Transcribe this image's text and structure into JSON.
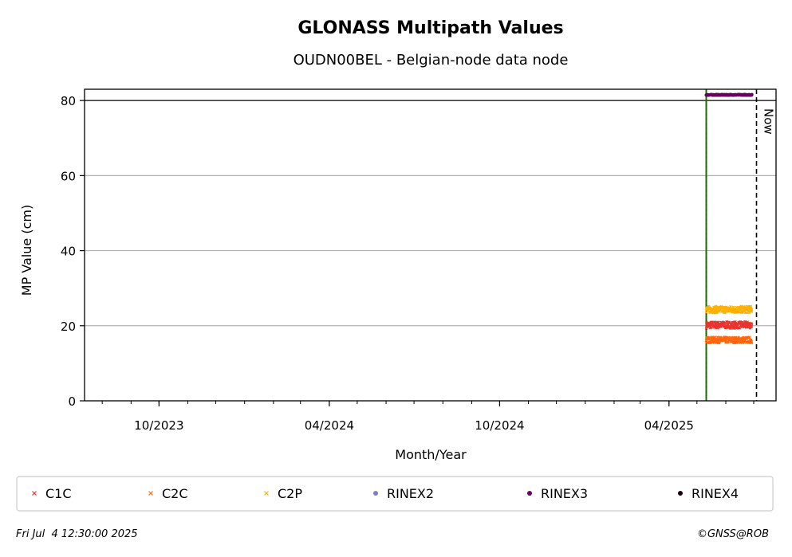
{
  "chart_data": {
    "type": "scatter",
    "title": "GLONASS Multipath Values",
    "subtitle": "OUDN00BEL - Belgian-node data node",
    "xlabel": "Month/Year",
    "ylabel": "MP Value (cm)",
    "xlim": [
      "2023-07-13",
      "2025-07-25"
    ],
    "ylim": [
      0,
      83
    ],
    "x_ticks": [
      {
        "date": "2023-10-01",
        "label": "10/2023"
      },
      {
        "date": "2024-04-01",
        "label": "04/2024"
      },
      {
        "date": "2024-10-01",
        "label": "10/2024"
      },
      {
        "date": "2025-04-01",
        "label": "04/2025"
      }
    ],
    "y_ticks": [
      0,
      20,
      40,
      60,
      80
    ],
    "grid": "y",
    "reference_line_y": 80,
    "vertical_markers": [
      {
        "date": "2025-05-11",
        "style": "green-red dashed",
        "label": ""
      },
      {
        "date": "2025-07-04",
        "style": "black dashed",
        "label": "Now"
      }
    ],
    "series": [
      {
        "name": "C1C",
        "color": "#e8352e",
        "marker": "x",
        "start": "2025-05-11",
        "end": "2025-06-29",
        "mean": 20.2,
        "jitter": 0.9
      },
      {
        "name": "C2C",
        "color": "#ff6610",
        "marker": "x",
        "start": "2025-05-11",
        "end": "2025-06-29",
        "mean": 16.2,
        "jitter": 0.8
      },
      {
        "name": "C2P",
        "color": "#ffb000",
        "marker": "x",
        "start": "2025-05-11",
        "end": "2025-06-29",
        "mean": 24.3,
        "jitter": 0.9
      },
      {
        "name": "RINEX2",
        "color": "#7f7fc0",
        "marker": "o",
        "start": "",
        "end": "",
        "mean": null,
        "jitter": 0
      },
      {
        "name": "RINEX3",
        "color": "#6a0060",
        "marker": "o",
        "start": "2025-05-11",
        "end": "2025-06-29",
        "mean": 81.5,
        "jitter": 0.1
      },
      {
        "name": "RINEX4",
        "color": "#1a0010",
        "marker": "o",
        "start": "",
        "end": "",
        "mean": null,
        "jitter": 0
      }
    ],
    "legend": "bottom, single row"
  },
  "footer": {
    "timestamp": "Fri Jul  4 12:30:00 2025",
    "credit": "©GNSS@ROB"
  }
}
